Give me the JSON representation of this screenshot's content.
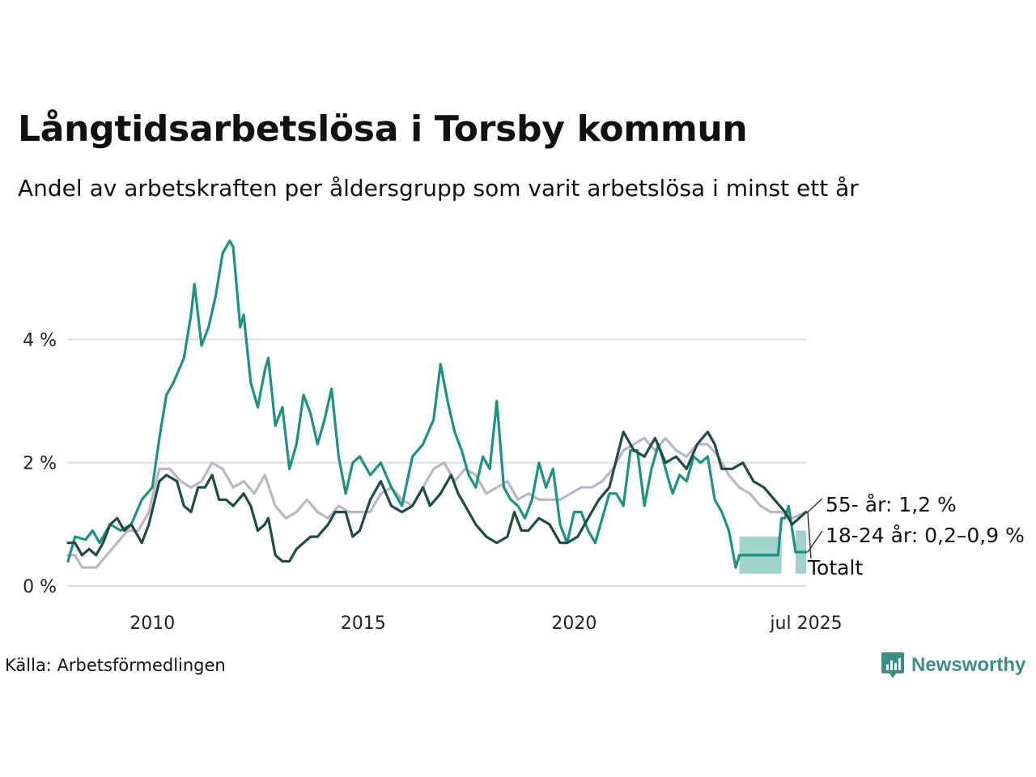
{
  "title": "Långtidsarbetslösa i Torsby kommun",
  "subtitle": "Andel av arbetskraften per åldersgrupp som varit arbetslösa i minst ett år",
  "source": "Källa: Arbetsförmedlingen",
  "brand": {
    "name": "Newsworthy",
    "icon": "newsworthy-logo-icon",
    "color": "#3a8f86"
  },
  "chart_data": {
    "type": "line",
    "x_start": "2008-01",
    "x_end": "2025-07",
    "ylim": [
      0,
      5.7
    ],
    "yticks": [
      0,
      2,
      4
    ],
    "ytick_labels": [
      "0 %",
      "2 %",
      "4 %"
    ],
    "xticks": [
      "2010-01",
      "2015-01",
      "2020-01",
      "2025-07"
    ],
    "xtick_labels": [
      "2010",
      "2015",
      "2020",
      "jul 2025"
    ],
    "grid": true,
    "series": [
      {
        "name": "55- år",
        "end_label": "55- år: 1,2 %",
        "color": "#b9b7c7",
        "values": [
          [
            "2008-01",
            0.5
          ],
          [
            "2008-03",
            0.5
          ],
          [
            "2008-05",
            0.3
          ],
          [
            "2008-09",
            0.3
          ],
          [
            "2008-12",
            0.5
          ],
          [
            "2009-03",
            0.7
          ],
          [
            "2009-06",
            0.9
          ],
          [
            "2009-09",
            0.9
          ],
          [
            "2009-12",
            1.2
          ],
          [
            "2010-03",
            1.9
          ],
          [
            "2010-06",
            1.9
          ],
          [
            "2010-09",
            1.7
          ],
          [
            "2010-12",
            1.6
          ],
          [
            "2011-03",
            1.7
          ],
          [
            "2011-06",
            2.0
          ],
          [
            "2011-09",
            1.9
          ],
          [
            "2011-12",
            1.6
          ],
          [
            "2012-03",
            1.7
          ],
          [
            "2012-06",
            1.5
          ],
          [
            "2012-09",
            1.8
          ],
          [
            "2012-12",
            1.3
          ],
          [
            "2013-03",
            1.1
          ],
          [
            "2013-06",
            1.2
          ],
          [
            "2013-09",
            1.4
          ],
          [
            "2013-12",
            1.2
          ],
          [
            "2014-03",
            1.1
          ],
          [
            "2014-06",
            1.3
          ],
          [
            "2014-09",
            1.2
          ],
          [
            "2014-12",
            1.2
          ],
          [
            "2015-03",
            1.2
          ],
          [
            "2015-06",
            1.5
          ],
          [
            "2015-09",
            1.6
          ],
          [
            "2015-12",
            1.4
          ],
          [
            "2016-03",
            1.3
          ],
          [
            "2016-06",
            1.6
          ],
          [
            "2016-09",
            1.9
          ],
          [
            "2016-12",
            2.0
          ],
          [
            "2017-03",
            1.7
          ],
          [
            "2017-06",
            1.9
          ],
          [
            "2017-09",
            1.8
          ],
          [
            "2017-12",
            1.5
          ],
          [
            "2018-03",
            1.6
          ],
          [
            "2018-06",
            1.7
          ],
          [
            "2018-09",
            1.4
          ],
          [
            "2018-12",
            1.5
          ],
          [
            "2019-03",
            1.4
          ],
          [
            "2019-06",
            1.4
          ],
          [
            "2019-09",
            1.4
          ],
          [
            "2019-12",
            1.5
          ],
          [
            "2020-03",
            1.6
          ],
          [
            "2020-06",
            1.6
          ],
          [
            "2020-09",
            1.7
          ],
          [
            "2020-12",
            1.9
          ],
          [
            "2021-03",
            2.2
          ],
          [
            "2021-06",
            2.3
          ],
          [
            "2021-09",
            2.4
          ],
          [
            "2021-12",
            2.2
          ],
          [
            "2022-03",
            2.4
          ],
          [
            "2022-06",
            2.2
          ],
          [
            "2022-09",
            2.1
          ],
          [
            "2022-12",
            2.3
          ],
          [
            "2023-03",
            2.3
          ],
          [
            "2023-06",
            2.1
          ],
          [
            "2023-09",
            1.8
          ],
          [
            "2023-12",
            1.6
          ],
          [
            "2024-03",
            1.5
          ],
          [
            "2024-06",
            1.3
          ],
          [
            "2024-09",
            1.2
          ],
          [
            "2024-12",
            1.2
          ],
          [
            "2025-03",
            1.1
          ],
          [
            "2025-07",
            1.2
          ]
        ]
      },
      {
        "name": "18-24 år",
        "end_label": "18-24 år: 0,2–0,9 %",
        "color": "#1a9482",
        "band_color": "#8fcdc2",
        "values": [
          [
            "2008-01",
            0.4
          ],
          [
            "2008-03",
            0.8
          ],
          [
            "2008-06",
            0.75
          ],
          [
            "2008-08",
            0.9
          ],
          [
            "2008-10",
            0.7
          ],
          [
            "2009-01",
            1.0
          ],
          [
            "2009-04",
            0.9
          ],
          [
            "2009-07",
            1.0
          ],
          [
            "2009-10",
            1.4
          ],
          [
            "2010-01",
            1.6
          ],
          [
            "2010-03",
            2.4
          ],
          [
            "2010-05",
            3.1
          ],
          [
            "2010-07",
            3.3
          ],
          [
            "2010-10",
            3.7
          ],
          [
            "2010-12",
            4.4
          ],
          [
            "2011-01",
            4.9
          ],
          [
            "2011-03",
            3.9
          ],
          [
            "2011-05",
            4.2
          ],
          [
            "2011-07",
            4.7
          ],
          [
            "2011-09",
            5.4
          ],
          [
            "2011-11",
            5.6
          ],
          [
            "2011-12",
            5.5
          ],
          [
            "2012-02",
            4.2
          ],
          [
            "2012-03",
            4.4
          ],
          [
            "2012-05",
            3.3
          ],
          [
            "2012-07",
            2.9
          ],
          [
            "2012-09",
            3.5
          ],
          [
            "2012-10",
            3.7
          ],
          [
            "2012-12",
            2.6
          ],
          [
            "2013-02",
            2.9
          ],
          [
            "2013-04",
            1.9
          ],
          [
            "2013-06",
            2.3
          ],
          [
            "2013-08",
            3.1
          ],
          [
            "2013-10",
            2.8
          ],
          [
            "2013-12",
            2.3
          ],
          [
            "2014-02",
            2.7
          ],
          [
            "2014-04",
            3.2
          ],
          [
            "2014-06",
            2.1
          ],
          [
            "2014-08",
            1.5
          ],
          [
            "2014-10",
            2.0
          ],
          [
            "2014-12",
            2.1
          ],
          [
            "2015-03",
            1.8
          ],
          [
            "2015-06",
            2.0
          ],
          [
            "2015-09",
            1.6
          ],
          [
            "2015-12",
            1.3
          ],
          [
            "2016-03",
            2.1
          ],
          [
            "2016-06",
            2.3
          ],
          [
            "2016-09",
            2.7
          ],
          [
            "2016-11",
            3.6
          ],
          [
            "2017-01",
            3.0
          ],
          [
            "2017-03",
            2.5
          ],
          [
            "2017-05",
            2.2
          ],
          [
            "2017-07",
            1.8
          ],
          [
            "2017-09",
            1.6
          ],
          [
            "2017-11",
            2.1
          ],
          [
            "2018-01",
            1.9
          ],
          [
            "2018-03",
            3.0
          ],
          [
            "2018-05",
            1.6
          ],
          [
            "2018-07",
            1.4
          ],
          [
            "2018-09",
            1.3
          ],
          [
            "2018-11",
            1.1
          ],
          [
            "2019-01",
            1.4
          ],
          [
            "2019-03",
            2.0
          ],
          [
            "2019-05",
            1.6
          ],
          [
            "2019-07",
            1.9
          ],
          [
            "2019-09",
            1.0
          ],
          [
            "2019-11",
            0.7
          ],
          [
            "2020-01",
            1.2
          ],
          [
            "2020-03",
            1.2
          ],
          [
            "2020-05",
            0.9
          ],
          [
            "2020-07",
            0.7
          ],
          [
            "2020-09",
            1.1
          ],
          [
            "2020-11",
            1.5
          ],
          [
            "2021-01",
            1.5
          ],
          [
            "2021-03",
            1.3
          ],
          [
            "2021-05",
            2.2
          ],
          [
            "2021-07",
            2.2
          ],
          [
            "2021-09",
            1.3
          ],
          [
            "2021-11",
            1.9
          ],
          [
            "2022-01",
            2.3
          ],
          [
            "2022-03",
            1.9
          ],
          [
            "2022-05",
            1.5
          ],
          [
            "2022-07",
            1.8
          ],
          [
            "2022-09",
            1.7
          ],
          [
            "2022-11",
            2.1
          ],
          [
            "2023-01",
            2.0
          ],
          [
            "2023-03",
            2.1
          ],
          [
            "2023-05",
            1.4
          ],
          [
            "2023-07",
            1.2
          ],
          [
            "2023-09",
            0.9
          ],
          [
            "2023-11",
            0.3
          ],
          [
            "2023-12",
            0.5
          ],
          [
            "2024-03",
            0.5
          ],
          [
            "2024-06",
            0.5
          ],
          [
            "2024-09",
            0.5
          ],
          [
            "2024-11",
            0.5
          ],
          [
            "2024-12",
            1.1
          ],
          [
            "2025-01",
            1.1
          ],
          [
            "2025-02",
            1.3
          ],
          [
            "2025-04",
            0.55
          ],
          [
            "2025-07",
            0.55
          ]
        ],
        "bands": [
          {
            "from": "2023-12",
            "to": "2024-12",
            "low": 0.2,
            "high": 0.8
          },
          {
            "from": "2025-04",
            "to": "2025-07",
            "low": 0.2,
            "high": 0.9
          }
        ]
      },
      {
        "name": "Totalt",
        "end_label": "Totalt",
        "color": "#1f4d46",
        "values": [
          [
            "2008-01",
            0.7
          ],
          [
            "2008-03",
            0.7
          ],
          [
            "2008-05",
            0.5
          ],
          [
            "2008-07",
            0.6
          ],
          [
            "2008-09",
            0.5
          ],
          [
            "2008-11",
            0.7
          ],
          [
            "2009-01",
            1.0
          ],
          [
            "2009-03",
            1.1
          ],
          [
            "2009-05",
            0.9
          ],
          [
            "2009-07",
            1.0
          ],
          [
            "2009-10",
            0.7
          ],
          [
            "2009-12",
            1.0
          ],
          [
            "2010-03",
            1.7
          ],
          [
            "2010-05",
            1.8
          ],
          [
            "2010-08",
            1.7
          ],
          [
            "2010-10",
            1.3
          ],
          [
            "2010-12",
            1.2
          ],
          [
            "2011-02",
            1.6
          ],
          [
            "2011-04",
            1.6
          ],
          [
            "2011-06",
            1.8
          ],
          [
            "2011-08",
            1.4
          ],
          [
            "2011-10",
            1.4
          ],
          [
            "2011-12",
            1.3
          ],
          [
            "2012-03",
            1.5
          ],
          [
            "2012-05",
            1.3
          ],
          [
            "2012-07",
            0.9
          ],
          [
            "2012-09",
            1.0
          ],
          [
            "2012-10",
            1.1
          ],
          [
            "2012-12",
            0.5
          ],
          [
            "2013-02",
            0.4
          ],
          [
            "2013-04",
            0.4
          ],
          [
            "2013-06",
            0.6
          ],
          [
            "2013-08",
            0.7
          ],
          [
            "2013-10",
            0.8
          ],
          [
            "2013-12",
            0.8
          ],
          [
            "2014-03",
            1.0
          ],
          [
            "2014-05",
            1.2
          ],
          [
            "2014-08",
            1.2
          ],
          [
            "2014-10",
            0.8
          ],
          [
            "2014-12",
            0.9
          ],
          [
            "2015-03",
            1.4
          ],
          [
            "2015-06",
            1.7
          ],
          [
            "2015-09",
            1.3
          ],
          [
            "2015-12",
            1.2
          ],
          [
            "2016-03",
            1.3
          ],
          [
            "2016-06",
            1.6
          ],
          [
            "2016-08",
            1.3
          ],
          [
            "2016-11",
            1.5
          ],
          [
            "2017-02",
            1.8
          ],
          [
            "2017-04",
            1.5
          ],
          [
            "2017-07",
            1.2
          ],
          [
            "2017-09",
            1.0
          ],
          [
            "2017-12",
            0.8
          ],
          [
            "2018-03",
            0.7
          ],
          [
            "2018-06",
            0.8
          ],
          [
            "2018-08",
            1.2
          ],
          [
            "2018-10",
            0.9
          ],
          [
            "2018-12",
            0.9
          ],
          [
            "2019-03",
            1.1
          ],
          [
            "2019-06",
            1.0
          ],
          [
            "2019-09",
            0.7
          ],
          [
            "2019-11",
            0.7
          ],
          [
            "2020-02",
            0.8
          ],
          [
            "2020-05",
            1.1
          ],
          [
            "2020-08",
            1.4
          ],
          [
            "2020-11",
            1.6
          ],
          [
            "2021-03",
            2.5
          ],
          [
            "2021-06",
            2.2
          ],
          [
            "2021-09",
            2.1
          ],
          [
            "2021-12",
            2.4
          ],
          [
            "2022-03",
            2.0
          ],
          [
            "2022-06",
            2.1
          ],
          [
            "2022-09",
            1.9
          ],
          [
            "2022-12",
            2.3
          ],
          [
            "2023-03",
            2.5
          ],
          [
            "2023-05",
            2.3
          ],
          [
            "2023-07",
            1.9
          ],
          [
            "2023-10",
            1.9
          ],
          [
            "2024-01",
            2.0
          ],
          [
            "2024-04",
            1.7
          ],
          [
            "2024-07",
            1.6
          ],
          [
            "2024-10",
            1.4
          ],
          [
            "2025-01",
            1.2
          ],
          [
            "2025-03",
            1.0
          ],
          [
            "2025-05",
            1.1
          ],
          [
            "2025-07",
            1.2
          ]
        ]
      }
    ]
  }
}
